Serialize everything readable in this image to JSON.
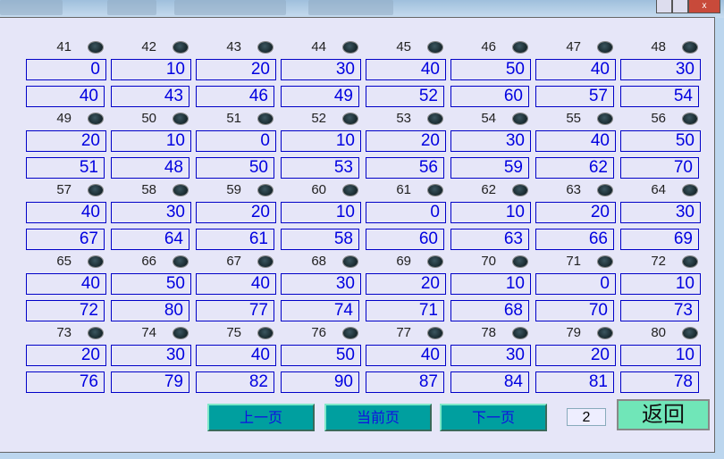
{
  "groups": [
    {
      "items": [
        {
          "id": "41",
          "a": "0",
          "b": "40"
        },
        {
          "id": "42",
          "a": "10",
          "b": "43"
        },
        {
          "id": "43",
          "a": "20",
          "b": "46"
        },
        {
          "id": "44",
          "a": "30",
          "b": "49"
        },
        {
          "id": "45",
          "a": "40",
          "b": "52"
        },
        {
          "id": "46",
          "a": "50",
          "b": "60"
        },
        {
          "id": "47",
          "a": "40",
          "b": "57"
        },
        {
          "id": "48",
          "a": "30",
          "b": "54"
        }
      ]
    },
    {
      "items": [
        {
          "id": "49",
          "a": "20",
          "b": "51"
        },
        {
          "id": "50",
          "a": "10",
          "b": "48"
        },
        {
          "id": "51",
          "a": "0",
          "b": "50"
        },
        {
          "id": "52",
          "a": "10",
          "b": "53"
        },
        {
          "id": "53",
          "a": "20",
          "b": "56"
        },
        {
          "id": "54",
          "a": "30",
          "b": "59"
        },
        {
          "id": "55",
          "a": "40",
          "b": "62"
        },
        {
          "id": "56",
          "a": "50",
          "b": "70"
        }
      ]
    },
    {
      "items": [
        {
          "id": "57",
          "a": "40",
          "b": "67"
        },
        {
          "id": "58",
          "a": "30",
          "b": "64"
        },
        {
          "id": "59",
          "a": "20",
          "b": "61"
        },
        {
          "id": "60",
          "a": "10",
          "b": "58"
        },
        {
          "id": "61",
          "a": "0",
          "b": "60"
        },
        {
          "id": "62",
          "a": "10",
          "b": "63"
        },
        {
          "id": "63",
          "a": "20",
          "b": "66"
        },
        {
          "id": "64",
          "a": "30",
          "b": "69"
        }
      ]
    },
    {
      "items": [
        {
          "id": "65",
          "a": "40",
          "b": "72"
        },
        {
          "id": "66",
          "a": "50",
          "b": "80"
        },
        {
          "id": "67",
          "a": "40",
          "b": "77"
        },
        {
          "id": "68",
          "a": "30",
          "b": "74"
        },
        {
          "id": "69",
          "a": "20",
          "b": "71"
        },
        {
          "id": "70",
          "a": "10",
          "b": "68"
        },
        {
          "id": "71",
          "a": "0",
          "b": "70"
        },
        {
          "id": "72",
          "a": "10",
          "b": "73"
        }
      ]
    },
    {
      "items": [
        {
          "id": "73",
          "a": "20",
          "b": "76"
        },
        {
          "id": "74",
          "a": "30",
          "b": "79"
        },
        {
          "id": "75",
          "a": "40",
          "b": "82"
        },
        {
          "id": "76",
          "a": "50",
          "b": "90"
        },
        {
          "id": "77",
          "a": "40",
          "b": "87"
        },
        {
          "id": "78",
          "a": "30",
          "b": "84"
        },
        {
          "id": "79",
          "a": "20",
          "b": "81"
        },
        {
          "id": "80",
          "a": "10",
          "b": "78"
        }
      ]
    }
  ],
  "footer": {
    "prev": "上一页",
    "current": "当前页",
    "next": "下一页",
    "page": "2",
    "back": "返回"
  },
  "window": {
    "close": "x"
  },
  "colors": {
    "value_text": "#0000e0",
    "button_bg": "#009f9f",
    "back_bg": "#70e6b8",
    "led": "#1f343a"
  }
}
